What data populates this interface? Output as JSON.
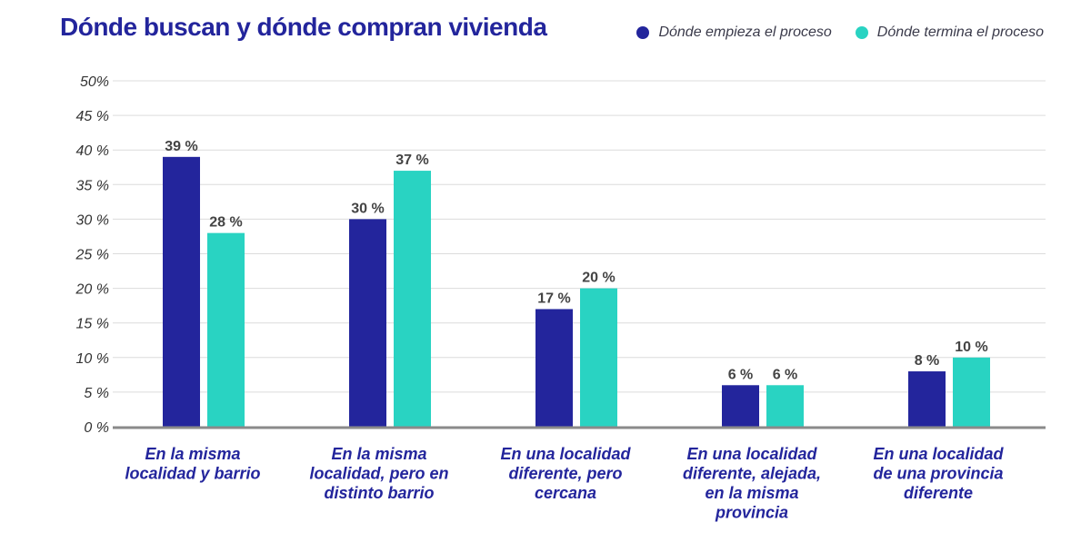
{
  "title": "Dónde buscan y dónde compran vivienda",
  "legend": [
    {
      "label": "Dónde empieza el proceso",
      "color": "#23259c"
    },
    {
      "label": "Dónde termina el proceso",
      "color": "#29d3c2"
    }
  ],
  "chart_data": {
    "type": "bar",
    "title": "Dónde buscan y dónde compran vivienda",
    "xlabel": "",
    "ylabel": "",
    "ylim": [
      0,
      50
    ],
    "yticks": [
      "0 %",
      "5 %",
      "10 %",
      "15 %",
      "20 %",
      "25 %",
      "30 %",
      "35 %",
      "40 %",
      "45 %",
      "50%"
    ],
    "grid": true,
    "legend_position": "top-right",
    "categories": [
      [
        "En la misma",
        "localidad y barrio"
      ],
      [
        "En la misma",
        "localidad, pero en",
        "distinto barrio"
      ],
      [
        "En una localidad",
        "diferente, pero",
        "cercana"
      ],
      [
        "En una localidad",
        "diferente, alejada,",
        "en la misma",
        "provincia"
      ],
      [
        "En una localidad",
        "de una provincia",
        "diferente"
      ]
    ],
    "series": [
      {
        "name": "Dónde empieza el proceso",
        "color": "#23259c",
        "values": [
          39,
          30,
          17,
          6,
          8
        ],
        "labels": [
          "39 %",
          "30 %",
          "17 %",
          "6 %",
          "8 %"
        ]
      },
      {
        "name": "Dónde termina el proceso",
        "color": "#29d3c2",
        "values": [
          28,
          37,
          20,
          6,
          10
        ],
        "labels": [
          "28 %",
          "37 %",
          "20 %",
          "6 %",
          "10 %"
        ]
      }
    ]
  }
}
